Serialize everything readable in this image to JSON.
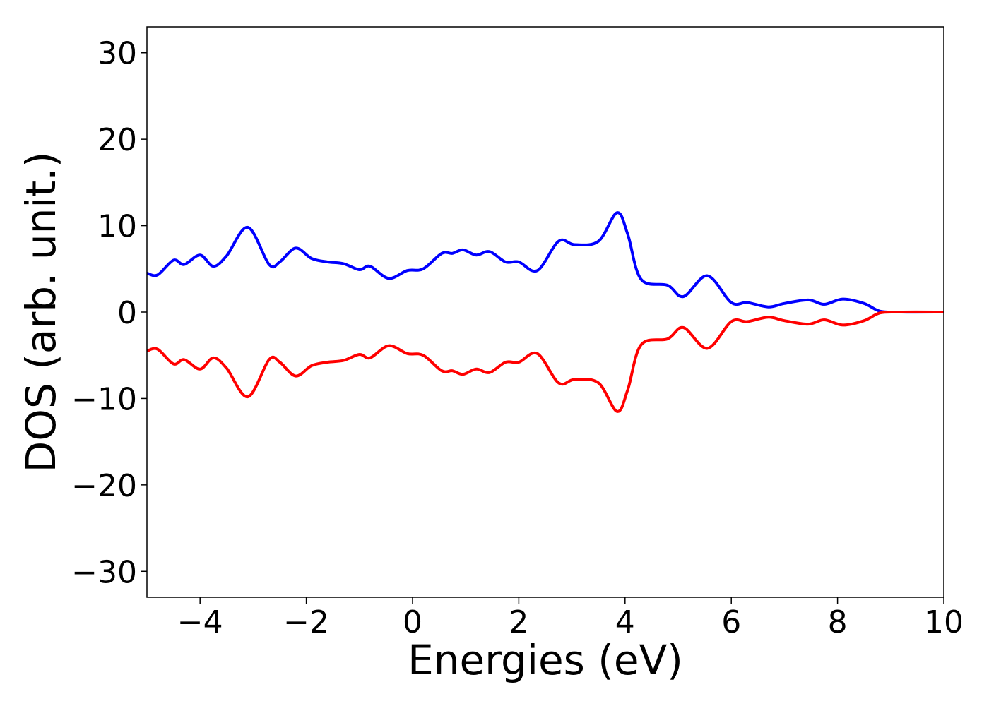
{
  "chart_data": {
    "type": "line",
    "title": "",
    "xlabel": "Energies (eV)",
    "ylabel": "DOS (arb. unit.)",
    "xlim": [
      -5,
      10
    ],
    "ylim": [
      -33,
      33
    ],
    "xticks": [
      -4,
      -2,
      0,
      2,
      4,
      6,
      8,
      10
    ],
    "yticks": [
      -30,
      -20,
      -10,
      0,
      10,
      20,
      30
    ],
    "xtick_labels": [
      "−4",
      "−2",
      "0",
      "2",
      "4",
      "6",
      "8",
      "10"
    ],
    "ytick_labels": [
      "−30",
      "−20",
      "−10",
      "0",
      "10",
      "20",
      "30"
    ],
    "grid": false,
    "legend": "none",
    "series": [
      {
        "color": "#0000ff",
        "x": [
          -5.0,
          -4.8,
          -4.5,
          -4.3,
          -4.0,
          -3.75,
          -3.5,
          -3.1,
          -2.7,
          -2.5,
          -2.2,
          -1.9,
          -1.6,
          -1.3,
          -1.0,
          -0.8,
          -0.45,
          -0.1,
          0.2,
          0.55,
          0.75,
          0.95,
          1.2,
          1.45,
          1.75,
          2.0,
          2.35,
          2.75,
          3.05,
          3.5,
          3.85,
          4.05,
          4.3,
          4.8,
          5.1,
          5.55,
          6.0,
          6.3,
          6.7,
          7.0,
          7.45,
          7.75,
          8.1,
          8.5,
          8.8,
          9.2,
          10.0
        ],
        "y": [
          4.5,
          4.3,
          6.0,
          5.5,
          6.6,
          5.3,
          6.5,
          9.8,
          5.5,
          5.8,
          7.4,
          6.2,
          5.8,
          5.6,
          4.9,
          5.3,
          3.9,
          4.8,
          5.0,
          6.8,
          6.8,
          7.2,
          6.6,
          7.0,
          5.8,
          5.8,
          4.8,
          8.2,
          7.8,
          8.2,
          11.5,
          9.0,
          3.8,
          3.1,
          1.8,
          4.2,
          1.1,
          1.1,
          0.6,
          1.0,
          1.4,
          0.9,
          1.5,
          1.0,
          0.1,
          0.0,
          0.0
        ]
      },
      {
        "color": "#ff0000",
        "x": [
          -5.0,
          -4.8,
          -4.5,
          -4.3,
          -4.0,
          -3.75,
          -3.5,
          -3.1,
          -2.7,
          -2.5,
          -2.2,
          -1.9,
          -1.6,
          -1.3,
          -1.0,
          -0.8,
          -0.45,
          -0.1,
          0.2,
          0.55,
          0.75,
          0.95,
          1.2,
          1.45,
          1.75,
          2.0,
          2.35,
          2.75,
          3.05,
          3.5,
          3.85,
          4.05,
          4.3,
          4.8,
          5.1,
          5.55,
          6.0,
          6.3,
          6.7,
          7.0,
          7.45,
          7.75,
          8.1,
          8.5,
          8.8,
          9.2,
          10.0
        ],
        "y": [
          -4.5,
          -4.3,
          -6.0,
          -5.5,
          -6.6,
          -5.3,
          -6.5,
          -9.8,
          -5.5,
          -5.8,
          -7.4,
          -6.2,
          -5.8,
          -5.6,
          -4.9,
          -5.3,
          -3.9,
          -4.8,
          -5.0,
          -6.8,
          -6.8,
          -7.2,
          -6.6,
          -7.0,
          -5.8,
          -5.8,
          -4.8,
          -8.2,
          -7.8,
          -8.2,
          -11.5,
          -9.0,
          -3.8,
          -3.1,
          -1.8,
          -4.2,
          -1.1,
          -1.1,
          -0.6,
          -1.0,
          -1.4,
          -0.9,
          -1.5,
          -1.0,
          -0.1,
          0.0,
          0.0
        ]
      }
    ]
  }
}
